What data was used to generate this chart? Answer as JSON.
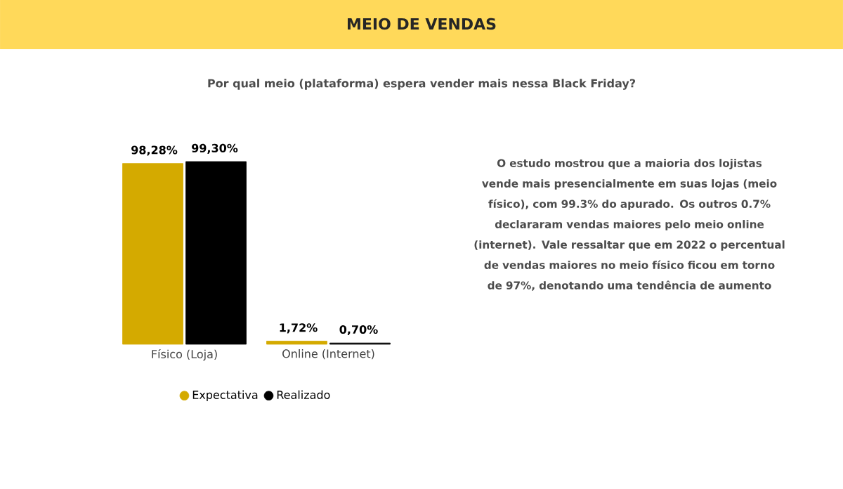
{
  "chart_data": {
    "type": "bar",
    "title": "MEIO DE VENDAS",
    "subtitle": "Por qual meio (plataforma) espera vender mais nessa Black Friday?",
    "categories": [
      "Físico (Loja)",
      "Online (Internet)"
    ],
    "series": [
      {
        "name": "Expectativa",
        "color": "#d4aa00",
        "values": [
          98.28,
          1.72
        ],
        "value_labels": [
          "98,28%",
          "1,72%"
        ]
      },
      {
        "name": "Realizado",
        "color": "#000000",
        "values": [
          99.3,
          0.7
        ],
        "value_labels": [
          "99,30%",
          "0,70%"
        ]
      }
    ],
    "legend": "bottom",
    "annotations": [
      "O estudo mostrou que a maioria dos lojistas vende mais presencialmente em suas lojas (meio físico), com 99.3% do apurado. Os outros 0.7% declararam vendas maiores pelo meio online (internet). Vale ressaltar que em 2022 o percentual de vendas maiores no meio físico ficou em torno de 97%, denotando uma tendência de aumento"
    ]
  }
}
